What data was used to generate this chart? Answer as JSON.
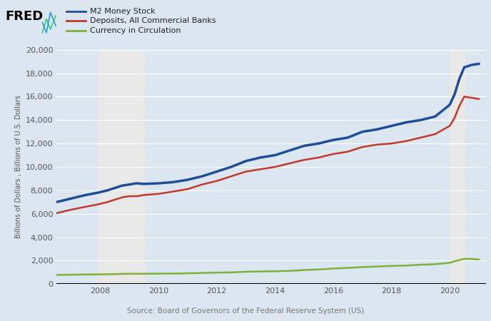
{
  "background_color": "#dce6f0",
  "plot_background": "#dce6f0",
  "source_text": "Source: Board of Governors of the Federal Reserve System (US)",
  "ylabel": "Billions of Dollars , Billions of U.S. Dollars",
  "ylim": [
    0,
    20000
  ],
  "yticks": [
    0,
    2000,
    4000,
    6000,
    8000,
    10000,
    12000,
    14000,
    16000,
    18000,
    20000
  ],
  "xlim_start": 2006.5,
  "xlim_end": 2021.25,
  "recession_bands": [
    [
      2007.917,
      2009.5
    ]
  ],
  "recession2_bands": [
    [
      2020.0,
      2020.5
    ]
  ],
  "xtick_years": [
    2008,
    2010,
    2012,
    2014,
    2016,
    2018,
    2020
  ],
  "series": {
    "m2": {
      "label": "M2 Money Stock",
      "color": "#1f4e96",
      "linewidth": 2.5
    },
    "deposits": {
      "label": "Deposits, All Commercial Banks",
      "color": "#c0392b",
      "linewidth": 1.8
    },
    "currency": {
      "label": "Currency in Circulation",
      "color": "#7fb03a",
      "linewidth": 1.8
    }
  },
  "m2_data": {
    "years": [
      2006.5,
      2007.0,
      2007.5,
      2007.917,
      2008.25,
      2008.5,
      2008.75,
      2009.0,
      2009.25,
      2009.5,
      2010.0,
      2010.5,
      2011.0,
      2011.5,
      2012.0,
      2012.5,
      2013.0,
      2013.5,
      2014.0,
      2014.5,
      2015.0,
      2015.5,
      2016.0,
      2016.5,
      2017.0,
      2017.5,
      2018.0,
      2018.5,
      2019.0,
      2019.5,
      2020.0,
      2020.17,
      2020.33,
      2020.5,
      2020.75,
      2021.0
    ],
    "values": [
      7000,
      7300,
      7600,
      7800,
      8000,
      8200,
      8400,
      8500,
      8600,
      8550,
      8600,
      8700,
      8900,
      9200,
      9600,
      10000,
      10500,
      10800,
      11000,
      11400,
      11800,
      12000,
      12300,
      12500,
      13000,
      13200,
      13500,
      13800,
      14000,
      14300,
      15300,
      16200,
      17500,
      18500,
      18700,
      18800
    ]
  },
  "deposits_data": {
    "years": [
      2006.5,
      2007.0,
      2007.5,
      2007.917,
      2008.25,
      2008.5,
      2008.75,
      2009.0,
      2009.25,
      2009.5,
      2010.0,
      2010.5,
      2011.0,
      2011.5,
      2012.0,
      2012.5,
      2013.0,
      2013.5,
      2014.0,
      2014.5,
      2015.0,
      2015.5,
      2016.0,
      2016.5,
      2017.0,
      2017.5,
      2018.0,
      2018.5,
      2019.0,
      2019.5,
      2020.0,
      2020.17,
      2020.33,
      2020.5,
      2020.75,
      2021.0
    ],
    "values": [
      6050,
      6350,
      6600,
      6800,
      7000,
      7200,
      7400,
      7500,
      7500,
      7600,
      7700,
      7900,
      8100,
      8500,
      8800,
      9200,
      9600,
      9800,
      10000,
      10300,
      10600,
      10800,
      11100,
      11300,
      11700,
      11900,
      12000,
      12200,
      12500,
      12800,
      13500,
      14200,
      15200,
      16000,
      15900,
      15800
    ]
  },
  "currency_data": {
    "years": [
      2006.5,
      2007.0,
      2007.5,
      2007.917,
      2008.25,
      2008.5,
      2008.75,
      2009.0,
      2009.25,
      2009.5,
      2010.0,
      2010.5,
      2011.0,
      2011.5,
      2012.0,
      2012.5,
      2013.0,
      2013.5,
      2014.0,
      2014.5,
      2015.0,
      2015.5,
      2016.0,
      2016.5,
      2017.0,
      2017.5,
      2018.0,
      2018.5,
      2019.0,
      2019.5,
      2020.0,
      2020.17,
      2020.33,
      2020.5,
      2020.75,
      2021.0
    ],
    "values": [
      780,
      800,
      820,
      830,
      840,
      850,
      870,
      880,
      880,
      880,
      890,
      900,
      920,
      950,
      980,
      1000,
      1050,
      1080,
      1100,
      1130,
      1200,
      1250,
      1330,
      1380,
      1450,
      1500,
      1550,
      1580,
      1650,
      1700,
      1820,
      1950,
      2050,
      2150,
      2150,
      2100
    ]
  },
  "grid_color": "#ffffff",
  "tick_label_color": "#555555",
  "recession_color": "#e8e8e8",
  "hline_color": "#000000"
}
